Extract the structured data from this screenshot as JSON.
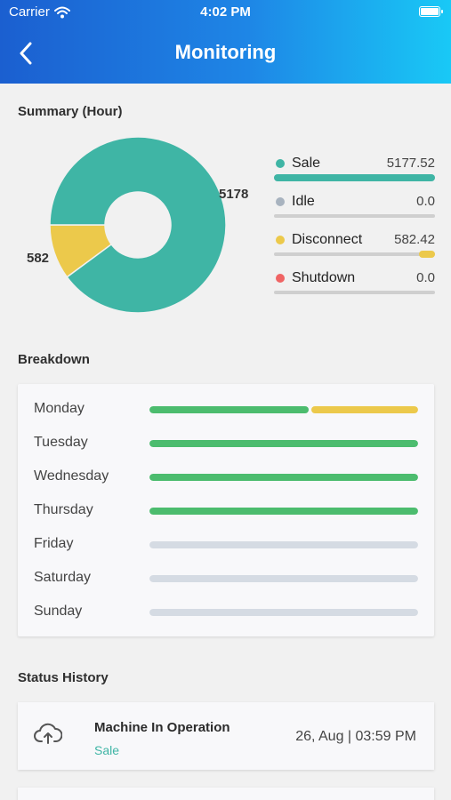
{
  "status_bar": {
    "carrier": "Carrier",
    "time": "4:02 PM"
  },
  "header": {
    "title": "Monitoring",
    "back_icon": "chevron-left-icon"
  },
  "summary": {
    "title": "Summary (Hour)",
    "donut_labels": {
      "sale": "5178",
      "disconnect": "582"
    },
    "legend": [
      {
        "name": "Sale",
        "value": "5177.52",
        "color": "#3fb5a5",
        "fraction": 1.0
      },
      {
        "name": "Idle",
        "value": "0.0",
        "color": "#a8b3bf",
        "fraction": 0.0
      },
      {
        "name": "Disconnect",
        "value": "582.42",
        "color": "#ecc94b",
        "fraction": 0.1
      },
      {
        "name": "Shutdown",
        "value": "0.0",
        "color": "#f06464",
        "fraction": 0.0
      }
    ]
  },
  "chart_data": {
    "type": "pie",
    "categories": [
      "Sale",
      "Disconnect"
    ],
    "values": [
      5178,
      582
    ],
    "colors": [
      "#3fb5a5",
      "#ecc94b"
    ],
    "donut": true
  },
  "breakdown": {
    "title": "Breakdown",
    "days": [
      {
        "label": "Monday",
        "segments": [
          {
            "fraction": 0.6,
            "color": "#4cbc6e"
          },
          {
            "fraction": 0.4,
            "color": "#ecc94b"
          }
        ]
      },
      {
        "label": "Tuesday",
        "segments": [
          {
            "fraction": 1.0,
            "color": "#4cbc6e"
          }
        ]
      },
      {
        "label": "Wednesday",
        "segments": [
          {
            "fraction": 1.0,
            "color": "#4cbc6e"
          }
        ]
      },
      {
        "label": "Thursday",
        "segments": [
          {
            "fraction": 1.0,
            "color": "#4cbc6e"
          }
        ]
      },
      {
        "label": "Friday",
        "segments": [
          {
            "fraction": 1.0,
            "color": "#d5dbe3"
          }
        ]
      },
      {
        "label": "Saturday",
        "segments": [
          {
            "fraction": 1.0,
            "color": "#d5dbe3"
          }
        ]
      },
      {
        "label": "Sunday",
        "segments": [
          {
            "fraction": 1.0,
            "color": "#d5dbe3"
          }
        ]
      }
    ]
  },
  "status_history": {
    "title": "Status History",
    "items": [
      {
        "icon": "cloud-upload-icon",
        "title": "Machine In Operation",
        "status": "Sale",
        "time": "26, Aug | 03:59 PM"
      }
    ]
  }
}
